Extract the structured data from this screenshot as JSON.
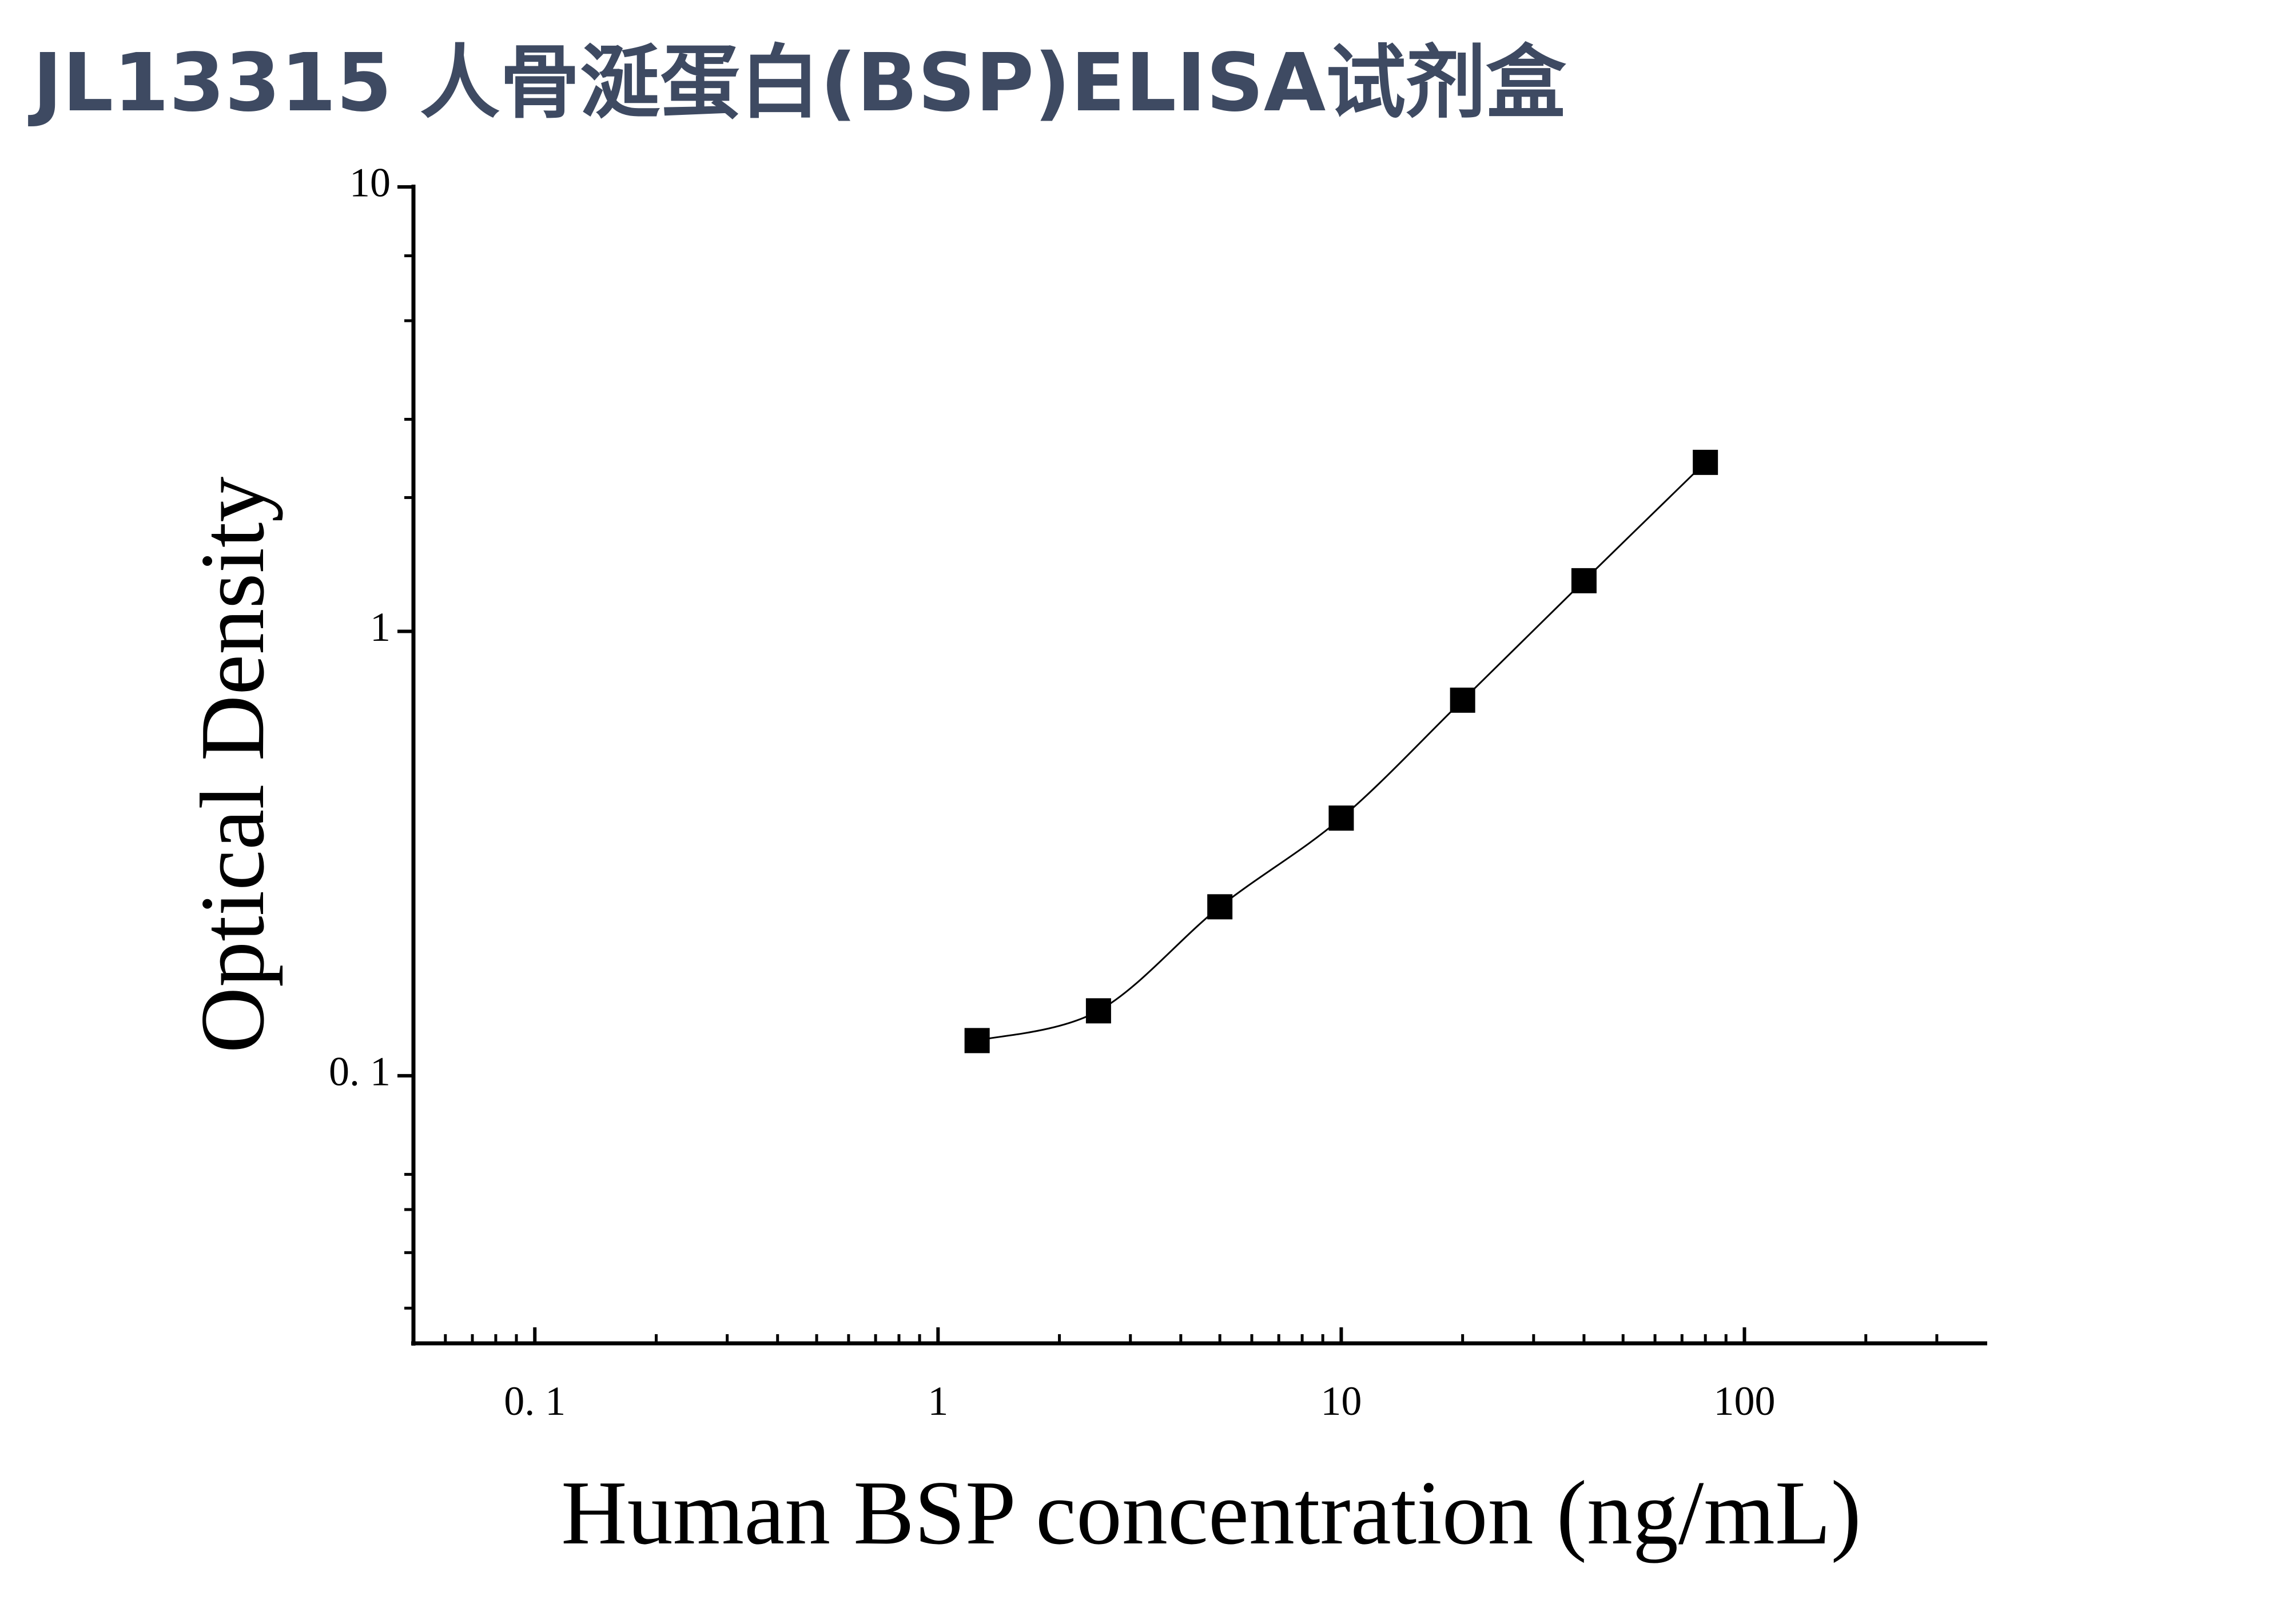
{
  "chart_data": {
    "type": "scatter",
    "title": "JL13315 人骨涎蛋白(BSP)ELISA试剂盒",
    "x_label": "Human BSP concentration (ng/mL)",
    "y_label": "Optical Density",
    "x": [
      1.25,
      2.5,
      5,
      10,
      20,
      40,
      80
    ],
    "values": [
      0.12,
      0.14,
      0.24,
      0.38,
      0.7,
      1.3,
      2.4
    ],
    "color": "#000000",
    "marker": "square",
    "fit_line": true,
    "x_log": true,
    "y_log": true,
    "xlim": [
      0.05,
      400
    ],
    "ylim": [
      0.025,
      10
    ],
    "xticks": [
      {
        "value": 0.1,
        "label": "0. 1"
      },
      1,
      10,
      100
    ],
    "yticks": [
      {
        "value": 0.1,
        "label": "0. 1"
      },
      1,
      10
    ],
    "xminorticks": [
      0.06,
      0.07,
      0.08,
      0.09,
      0.2,
      0.3,
      0.4,
      0.5,
      0.6,
      0.7,
      0.8,
      0.9,
      2,
      3,
      4,
      5,
      6,
      7,
      8,
      9,
      20,
      30,
      40,
      50,
      60,
      70,
      80,
      90,
      200,
      300
    ],
    "yminorticks": [
      0.03,
      0.04,
      0.05,
      0.06,
      2,
      3,
      5,
      7
    ],
    "grid": false
  }
}
